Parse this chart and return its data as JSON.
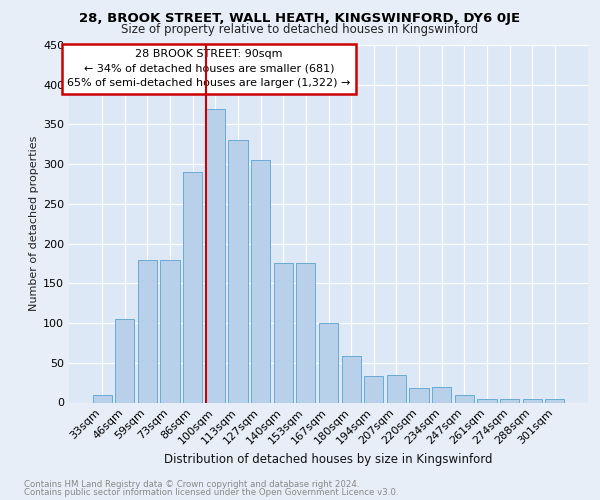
{
  "title1": "28, BROOK STREET, WALL HEATH, KINGSWINFORD, DY6 0JE",
  "title2": "Size of property relative to detached houses in Kingswinford",
  "xlabel": "Distribution of detached houses by size in Kingswinford",
  "ylabel": "Number of detached properties",
  "categories": [
    "33sqm",
    "46sqm",
    "59sqm",
    "73sqm",
    "86sqm",
    "100sqm",
    "113sqm",
    "127sqm",
    "140sqm",
    "153sqm",
    "167sqm",
    "180sqm",
    "194sqm",
    "207sqm",
    "220sqm",
    "234sqm",
    "247sqm",
    "261sqm",
    "274sqm",
    "288sqm",
    "301sqm"
  ],
  "values": [
    10,
    105,
    180,
    180,
    290,
    370,
    330,
    305,
    175,
    175,
    100,
    58,
    33,
    35,
    18,
    20,
    10,
    5,
    5,
    5,
    5
  ],
  "bar_color": "#b8d0ea",
  "bar_edge_color": "#6aaad4",
  "annotation_label": "28 BROOK STREET: 90sqm",
  "annotation_line1": "← 34% of detached houses are smaller (681)",
  "annotation_line2": "65% of semi-detached houses are larger (1,322) →",
  "ref_line_x": 4.575,
  "ylim": [
    0,
    450
  ],
  "yticks": [
    0,
    50,
    100,
    150,
    200,
    250,
    300,
    350,
    400,
    450
  ],
  "fig_bg_color": "#e8eef8",
  "plot_bg_color": "#dce8f5",
  "grid_color": "#ffffff",
  "footer1": "Contains HM Land Registry data © Crown copyright and database right 2024.",
  "footer2": "Contains public sector information licensed under the Open Government Licence v3.0."
}
